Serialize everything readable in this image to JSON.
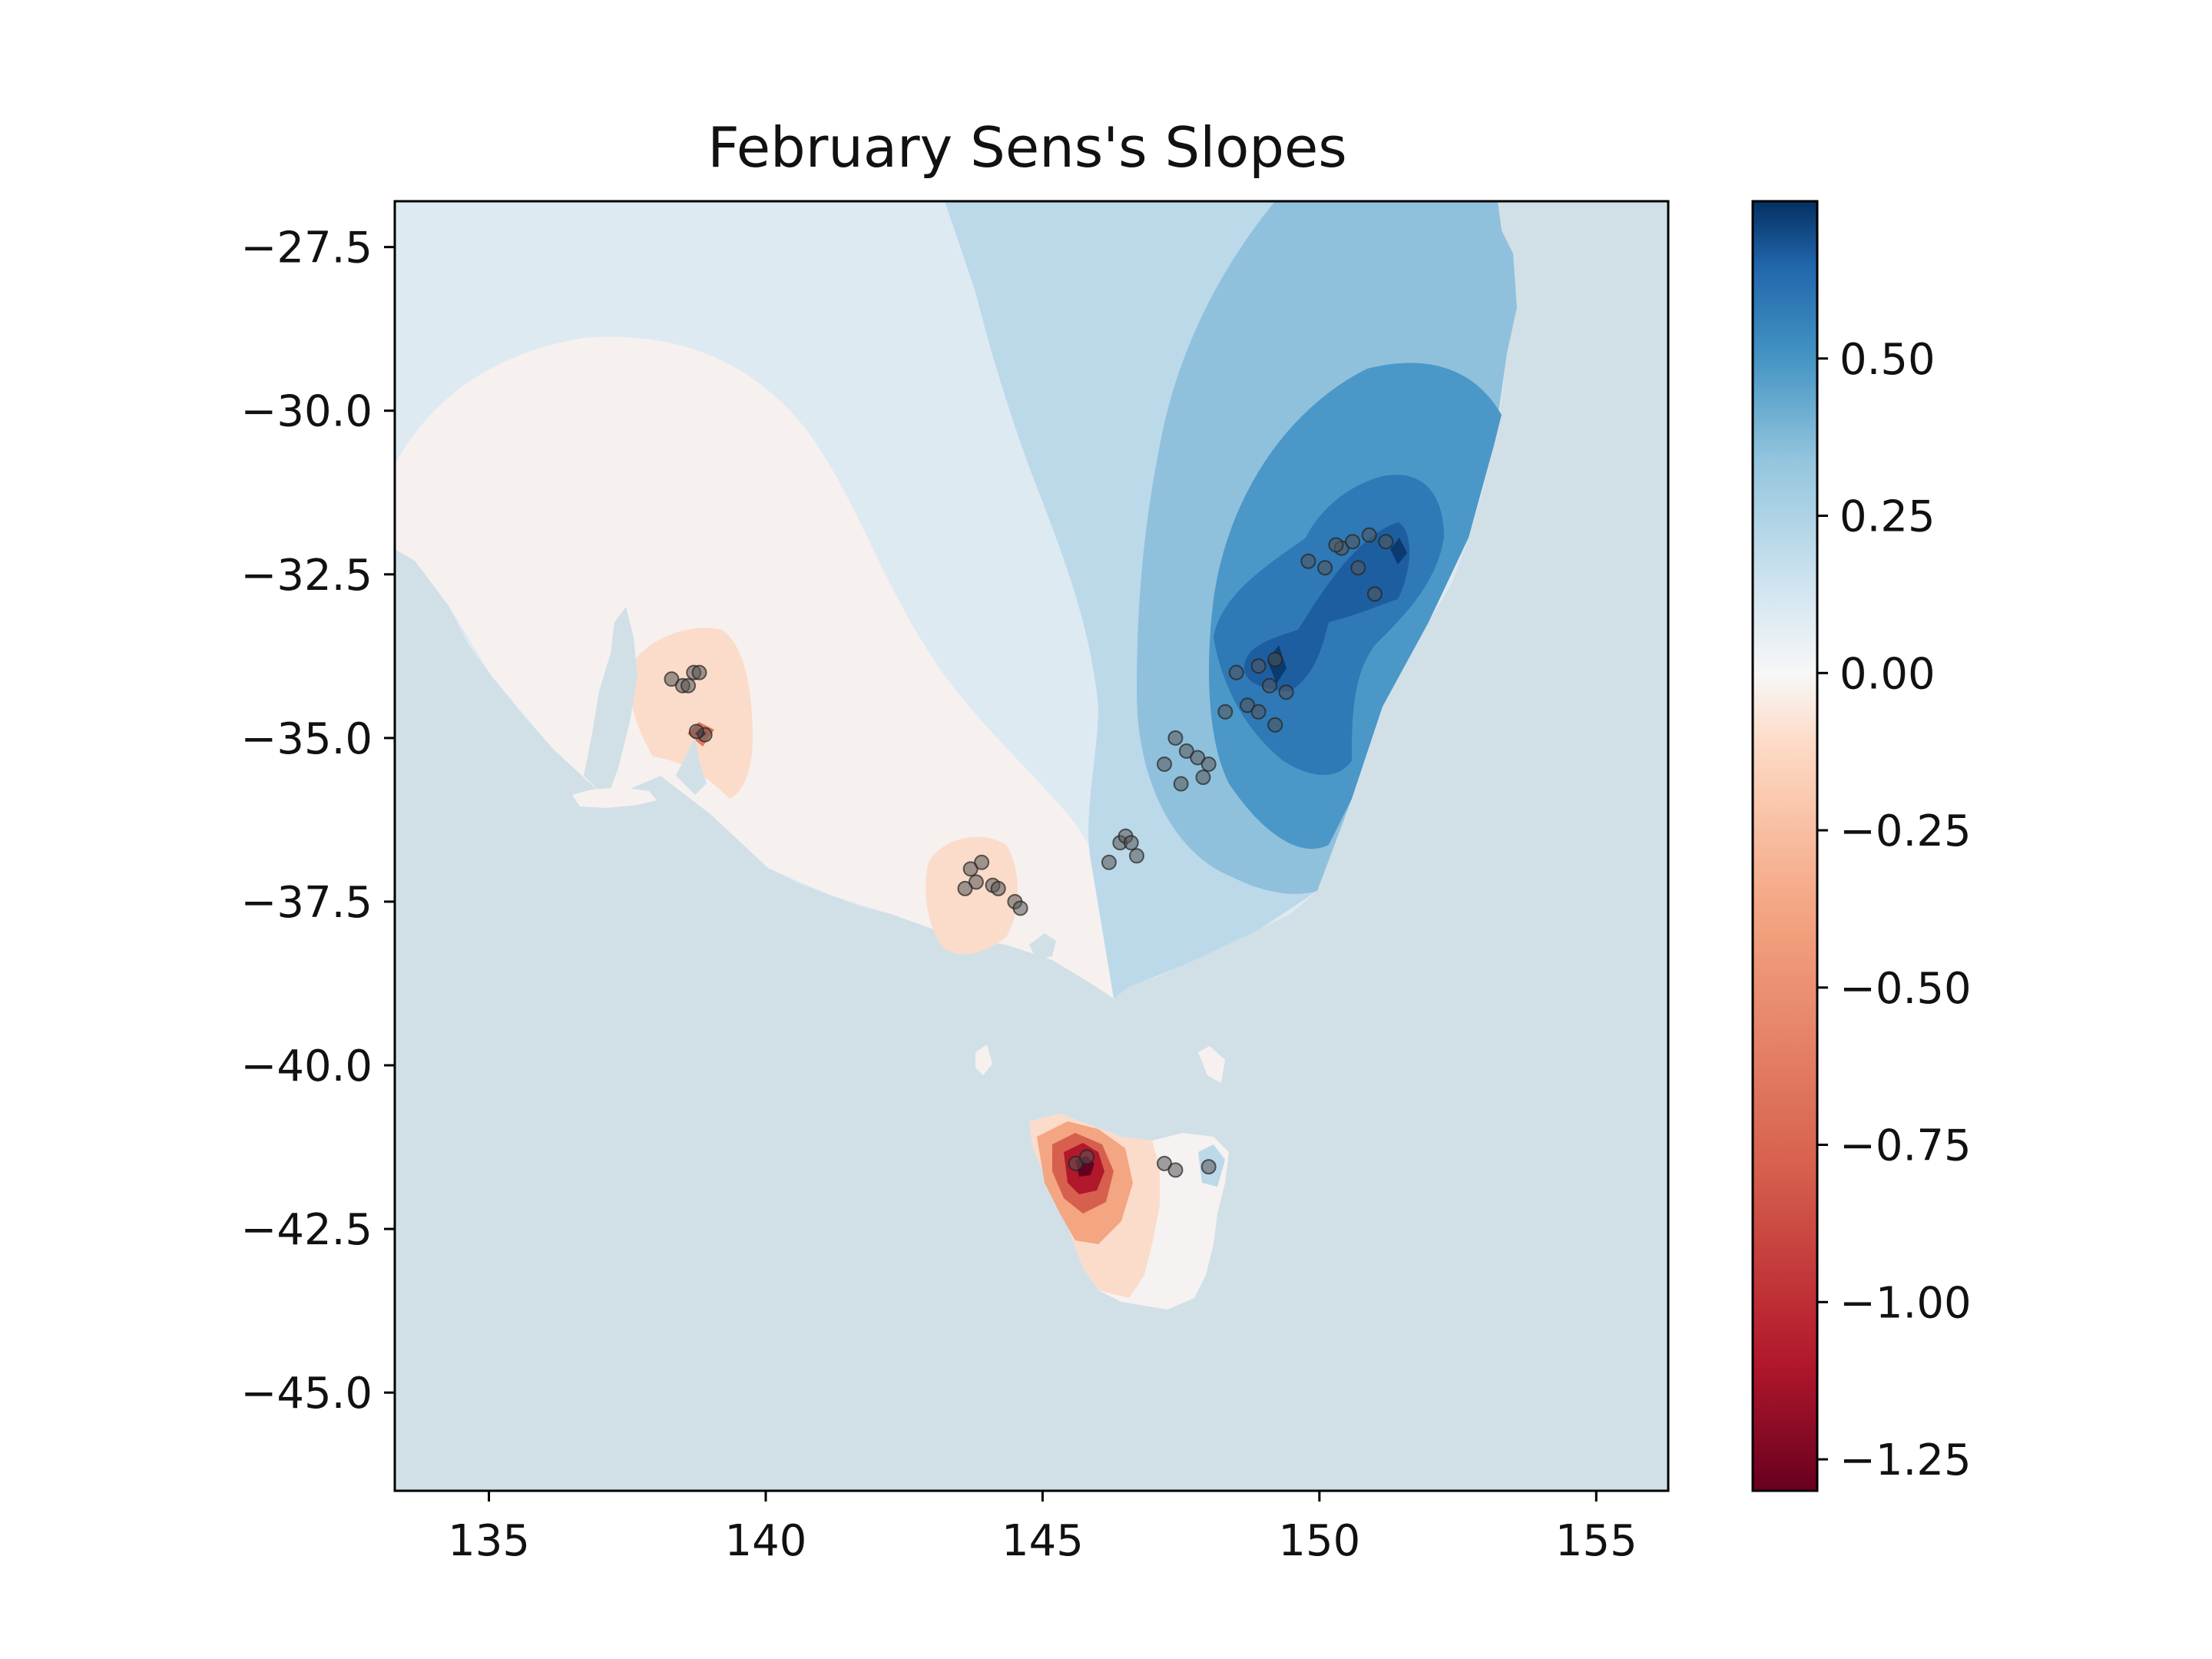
{
  "title": "February Sens's Slopes",
  "x_axis": {
    "ticks": [
      "135",
      "140",
      "145",
      "150",
      "155"
    ],
    "tick_values": [
      135,
      140,
      145,
      150,
      155
    ],
    "range": [
      133.3,
      156.3
    ]
  },
  "y_axis": {
    "ticks": [
      "−27.5",
      "−30.0",
      "−32.5",
      "−35.0",
      "−37.5",
      "−40.0",
      "−42.5",
      "−45.0"
    ],
    "tick_values": [
      -27.5,
      -30.0,
      -32.5,
      -35.0,
      -37.5,
      -40.0,
      -42.5,
      -45.0
    ],
    "range": [
      -46.5,
      -26.8
    ]
  },
  "colorbar": {
    "ticks": [
      "0.50",
      "0.25",
      "0.00",
      "−0.25",
      "−0.50",
      "−0.75",
      "−1.00",
      "−1.25"
    ],
    "tick_values": [
      0.5,
      0.25,
      0.0,
      -0.25,
      -0.5,
      -0.75,
      -1.0,
      -1.25
    ],
    "range": [
      -1.3,
      0.75
    ],
    "colormap": "RdBu"
  },
  "colors": {
    "ocean": "#d1e0e7",
    "neutral_land": "#f6f1ef",
    "light_blue": "#deeaf2",
    "station_marker": "#333333"
  },
  "stations": [
    [
      138.3,
      -34.1
    ],
    [
      138.5,
      -34.2
    ],
    [
      138.7,
      -34.0
    ],
    [
      138.8,
      -34.0
    ],
    [
      138.9,
      -34.95
    ],
    [
      138.75,
      -34.9
    ],
    [
      138.6,
      -34.2
    ],
    [
      143.7,
      -37.0
    ],
    [
      143.9,
      -36.9
    ],
    [
      143.8,
      -37.2
    ],
    [
      144.1,
      -37.25
    ],
    [
      143.6,
      -37.3
    ],
    [
      144.2,
      -37.3
    ],
    [
      144.5,
      -37.5
    ],
    [
      144.6,
      -37.6
    ],
    [
      146.2,
      -36.9
    ],
    [
      146.4,
      -36.6
    ],
    [
      146.5,
      -36.5
    ],
    [
      146.6,
      -36.6
    ],
    [
      146.7,
      -36.8
    ],
    [
      147.2,
      -35.4
    ],
    [
      147.4,
      -35.0
    ],
    [
      147.6,
      -35.2
    ],
    [
      147.8,
      -35.3
    ],
    [
      148.0,
      -35.4
    ],
    [
      147.9,
      -35.6
    ],
    [
      147.5,
      -35.7
    ],
    [
      148.3,
      -34.6
    ],
    [
      148.7,
      -34.5
    ],
    [
      148.9,
      -34.6
    ],
    [
      149.2,
      -34.8
    ],
    [
      149.1,
      -34.2
    ],
    [
      149.4,
      -34.3
    ],
    [
      148.5,
      -34.0
    ],
    [
      148.9,
      -33.9
    ],
    [
      149.2,
      -33.8
    ],
    [
      149.8,
      -32.3
    ],
    [
      150.1,
      -32.4
    ],
    [
      150.4,
      -32.1
    ],
    [
      150.6,
      -32.0
    ],
    [
      150.9,
      -31.9
    ],
    [
      151.2,
      -32.0
    ],
    [
      151.0,
      -32.8
    ],
    [
      150.7,
      -32.4
    ],
    [
      150.3,
      -32.05
    ],
    [
      147.2,
      -41.5
    ],
    [
      147.4,
      -41.6
    ],
    [
      148.0,
      -41.55
    ],
    [
      145.6,
      -41.5
    ],
    [
      145.8,
      -41.4
    ]
  ]
}
